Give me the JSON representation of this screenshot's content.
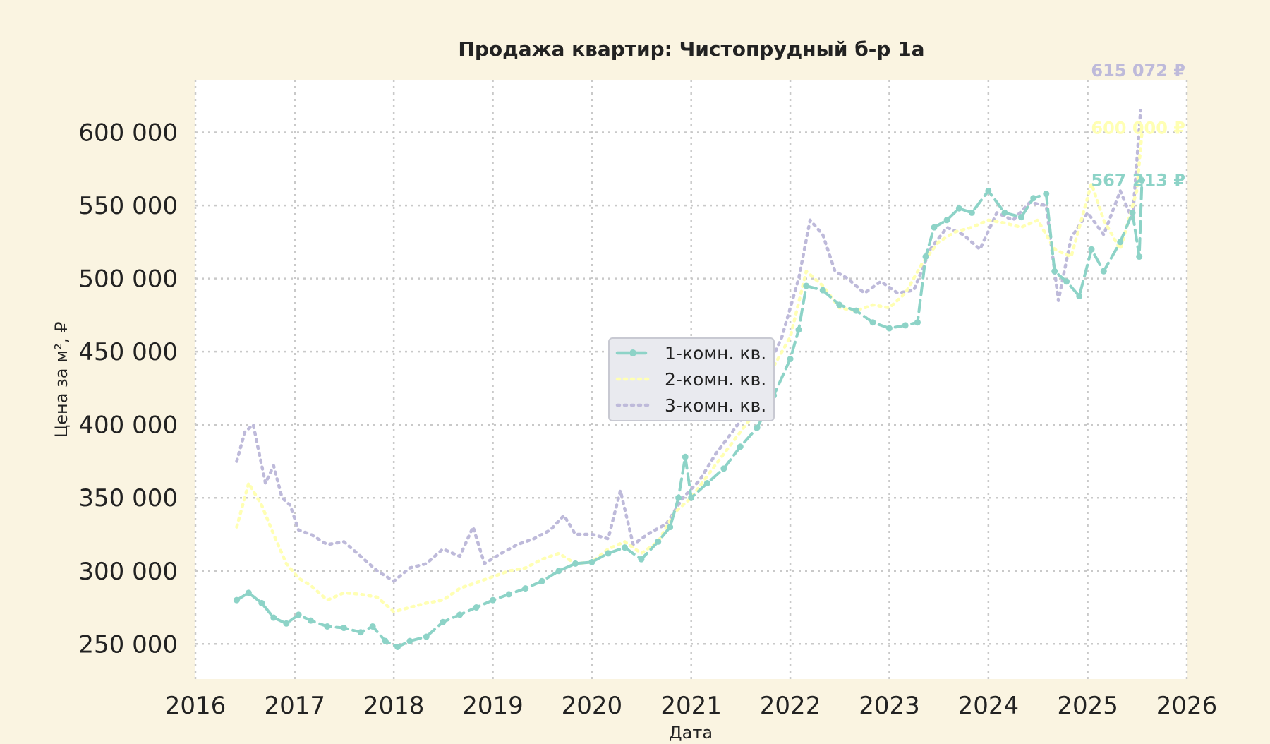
{
  "chart_data": {
    "type": "line",
    "title": "Продажа квартир: Чистопрудный б-р 1а",
    "xlabel": "Дата",
    "ylabel": "Цена за м², ₽",
    "xlim": [
      "2016-01-01",
      "2026-01-01"
    ],
    "ylim": [
      226000,
      636000
    ],
    "x_ticks": [
      "2016",
      "2017",
      "2018",
      "2019",
      "2020",
      "2021",
      "2022",
      "2023",
      "2024",
      "2025",
      "2026"
    ],
    "y_ticks": [
      250000,
      300000,
      350000,
      400000,
      450000,
      500000,
      550000,
      600000
    ],
    "y_tick_labels": [
      "250 000",
      "300 000",
      "350 000",
      "400 000",
      "450 000",
      "500 000",
      "550 000",
      "600 000"
    ],
    "grid": true,
    "grid_style": "dotted",
    "legend_position": "center",
    "end_labels": [
      {
        "text": "615 072 ₽",
        "series": "3-комн. кв.",
        "date": "2025-12-25",
        "value": 615072
      },
      {
        "text": "600 000 ₽",
        "series": "2-комн. кв.",
        "date": "2025-12-25",
        "value": 600000
      },
      {
        "text": "567 213 ₽",
        "series": "1-комн. кв.",
        "date": "2025-12-25",
        "value": 567213
      }
    ],
    "series": [
      {
        "name": "1-комн. кв.",
        "color": "#8dd3c7",
        "style": "dashed",
        "marker": "circle",
        "points": [
          [
            "2016-06-01",
            280000
          ],
          [
            "2016-07-15",
            285000
          ],
          [
            "2016-09-01",
            278000
          ],
          [
            "2016-10-15",
            268000
          ],
          [
            "2016-12-01",
            264000
          ],
          [
            "2017-01-15",
            270000
          ],
          [
            "2017-03-01",
            266000
          ],
          [
            "2017-05-01",
            262000
          ],
          [
            "2017-07-01",
            261000
          ],
          [
            "2017-09-01",
            258000
          ],
          [
            "2017-10-15",
            262000
          ],
          [
            "2017-12-01",
            252000
          ],
          [
            "2018-01-15",
            248000
          ],
          [
            "2018-03-01",
            252000
          ],
          [
            "2018-05-01",
            255000
          ],
          [
            "2018-07-01",
            265000
          ],
          [
            "2018-09-01",
            270000
          ],
          [
            "2018-11-01",
            275000
          ],
          [
            "2019-01-01",
            280000
          ],
          [
            "2019-03-01",
            284000
          ],
          [
            "2019-05-01",
            288000
          ],
          [
            "2019-07-01",
            293000
          ],
          [
            "2019-09-01",
            300000
          ],
          [
            "2019-11-01",
            305000
          ],
          [
            "2020-01-01",
            306000
          ],
          [
            "2020-03-01",
            312000
          ],
          [
            "2020-05-01",
            316000
          ],
          [
            "2020-07-01",
            308000
          ],
          [
            "2020-09-01",
            320000
          ],
          [
            "2020-10-15",
            330000
          ],
          [
            "2020-11-15",
            350000
          ],
          [
            "2020-12-10",
            378000
          ],
          [
            "2021-01-01",
            350000
          ],
          [
            "2021-03-01",
            360000
          ],
          [
            "2021-05-01",
            370000
          ],
          [
            "2021-07-01",
            385000
          ],
          [
            "2021-09-01",
            398000
          ],
          [
            "2021-11-01",
            420000
          ],
          [
            "2022-01-01",
            445000
          ],
          [
            "2022-02-01",
            465000
          ],
          [
            "2022-03-01",
            495000
          ],
          [
            "2022-05-01",
            492000
          ],
          [
            "2022-07-01",
            482000
          ],
          [
            "2022-09-01",
            478000
          ],
          [
            "2022-11-01",
            470000
          ],
          [
            "2023-01-01",
            466000
          ],
          [
            "2023-03-01",
            468000
          ],
          [
            "2023-04-15",
            470000
          ],
          [
            "2023-05-15",
            515000
          ],
          [
            "2023-06-15",
            535000
          ],
          [
            "2023-08-01",
            540000
          ],
          [
            "2023-09-15",
            548000
          ],
          [
            "2023-11-01",
            545000
          ],
          [
            "2024-01-01",
            560000
          ],
          [
            "2024-03-01",
            545000
          ],
          [
            "2024-05-01",
            542000
          ],
          [
            "2024-06-15",
            555000
          ],
          [
            "2024-08-01",
            558000
          ],
          [
            "2024-09-01",
            505000
          ],
          [
            "2024-10-15",
            498000
          ],
          [
            "2024-12-01",
            488000
          ],
          [
            "2025-01-15",
            520000
          ],
          [
            "2025-03-01",
            505000
          ],
          [
            "2025-05-01",
            525000
          ],
          [
            "2025-06-15",
            545000
          ],
          [
            "2025-07-10",
            515000
          ],
          [
            "2025-07-20",
            567213
          ]
        ]
      },
      {
        "name": "2-комн. кв.",
        "color": "#ffffb3",
        "style": "dotted",
        "marker": "none",
        "points": [
          [
            "2016-06-01",
            330000
          ],
          [
            "2016-07-15",
            360000
          ],
          [
            "2016-09-01",
            345000
          ],
          [
            "2016-10-15",
            325000
          ],
          [
            "2016-12-01",
            305000
          ],
          [
            "2017-01-15",
            295000
          ],
          [
            "2017-03-01",
            290000
          ],
          [
            "2017-05-01",
            280000
          ],
          [
            "2017-07-01",
            285000
          ],
          [
            "2017-09-01",
            284000
          ],
          [
            "2017-11-01",
            282000
          ],
          [
            "2018-01-01",
            272000
          ],
          [
            "2018-03-01",
            275000
          ],
          [
            "2018-05-01",
            278000
          ],
          [
            "2018-07-01",
            280000
          ],
          [
            "2018-09-01",
            288000
          ],
          [
            "2018-11-01",
            292000
          ],
          [
            "2019-01-01",
            296000
          ],
          [
            "2019-03-01",
            300000
          ],
          [
            "2019-05-01",
            302000
          ],
          [
            "2019-07-01",
            308000
          ],
          [
            "2019-09-01",
            312000
          ],
          [
            "2019-11-01",
            305000
          ],
          [
            "2020-01-01",
            306000
          ],
          [
            "2020-03-01",
            315000
          ],
          [
            "2020-05-01",
            320000
          ],
          [
            "2020-07-01",
            312000
          ],
          [
            "2020-09-01",
            320000
          ],
          [
            "2020-11-01",
            340000
          ],
          [
            "2021-01-01",
            350000
          ],
          [
            "2021-03-01",
            365000
          ],
          [
            "2021-05-01",
            380000
          ],
          [
            "2021-07-01",
            395000
          ],
          [
            "2021-09-01",
            410000
          ],
          [
            "2021-11-01",
            440000
          ],
          [
            "2022-01-01",
            460000
          ],
          [
            "2022-03-01",
            505000
          ],
          [
            "2022-05-01",
            495000
          ],
          [
            "2022-07-01",
            480000
          ],
          [
            "2022-09-01",
            478000
          ],
          [
            "2022-11-01",
            482000
          ],
          [
            "2023-01-01",
            480000
          ],
          [
            "2023-03-01",
            490000
          ],
          [
            "2023-05-01",
            510000
          ],
          [
            "2023-07-01",
            525000
          ],
          [
            "2023-09-01",
            532000
          ],
          [
            "2023-11-01",
            535000
          ],
          [
            "2024-01-01",
            540000
          ],
          [
            "2024-03-01",
            538000
          ],
          [
            "2024-05-01",
            535000
          ],
          [
            "2024-07-01",
            540000
          ],
          [
            "2024-09-01",
            520000
          ],
          [
            "2024-11-01",
            515000
          ],
          [
            "2025-01-15",
            565000
          ],
          [
            "2025-03-01",
            540000
          ],
          [
            "2025-05-01",
            520000
          ],
          [
            "2025-07-01",
            560000
          ],
          [
            "2025-07-20",
            600000
          ]
        ]
      },
      {
        "name": "3-комн. кв.",
        "color": "#bebada",
        "style": "dotted",
        "marker": "none",
        "points": [
          [
            "2016-06-01",
            375000
          ],
          [
            "2016-07-01",
            395000
          ],
          [
            "2016-08-01",
            400000
          ],
          [
            "2016-09-15",
            360000
          ],
          [
            "2016-10-15",
            372000
          ],
          [
            "2016-11-15",
            350000
          ],
          [
            "2016-12-15",
            345000
          ],
          [
            "2017-01-15",
            328000
          ],
          [
            "2017-03-01",
            325000
          ],
          [
            "2017-05-01",
            318000
          ],
          [
            "2017-07-01",
            320000
          ],
          [
            "2017-09-01",
            310000
          ],
          [
            "2017-11-01",
            300000
          ],
          [
            "2018-01-01",
            293000
          ],
          [
            "2018-03-01",
            302000
          ],
          [
            "2018-05-01",
            305000
          ],
          [
            "2018-07-01",
            315000
          ],
          [
            "2018-09-01",
            310000
          ],
          [
            "2018-10-20",
            330000
          ],
          [
            "2018-12-01",
            305000
          ],
          [
            "2019-02-01",
            312000
          ],
          [
            "2019-04-01",
            318000
          ],
          [
            "2019-06-01",
            322000
          ],
          [
            "2019-08-01",
            328000
          ],
          [
            "2019-09-20",
            338000
          ],
          [
            "2019-11-01",
            325000
          ],
          [
            "2020-01-01",
            325000
          ],
          [
            "2020-03-01",
            322000
          ],
          [
            "2020-04-15",
            355000
          ],
          [
            "2020-06-01",
            318000
          ],
          [
            "2020-08-01",
            326000
          ],
          [
            "2020-10-01",
            332000
          ],
          [
            "2020-12-01",
            350000
          ],
          [
            "2021-02-01",
            362000
          ],
          [
            "2021-04-01",
            380000
          ],
          [
            "2021-06-01",
            395000
          ],
          [
            "2021-08-01",
            410000
          ],
          [
            "2021-10-01",
            435000
          ],
          [
            "2021-12-01",
            460000
          ],
          [
            "2022-02-01",
            500000
          ],
          [
            "2022-03-15",
            540000
          ],
          [
            "2022-05-01",
            530000
          ],
          [
            "2022-06-15",
            505000
          ],
          [
            "2022-08-01",
            500000
          ],
          [
            "2022-10-01",
            490000
          ],
          [
            "2022-12-01",
            498000
          ],
          [
            "2023-02-01",
            490000
          ],
          [
            "2023-04-01",
            492000
          ],
          [
            "2023-06-01",
            520000
          ],
          [
            "2023-08-01",
            535000
          ],
          [
            "2023-10-01",
            530000
          ],
          [
            "2023-12-01",
            520000
          ],
          [
            "2024-02-01",
            545000
          ],
          [
            "2024-04-01",
            540000
          ],
          [
            "2024-06-01",
            552000
          ],
          [
            "2024-08-01",
            550000
          ],
          [
            "2024-09-15",
            485000
          ],
          [
            "2024-11-01",
            528000
          ],
          [
            "2025-01-01",
            545000
          ],
          [
            "2025-03-01",
            530000
          ],
          [
            "2025-05-01",
            560000
          ],
          [
            "2025-06-15",
            540000
          ],
          [
            "2025-07-15",
            615072
          ]
        ]
      }
    ]
  }
}
